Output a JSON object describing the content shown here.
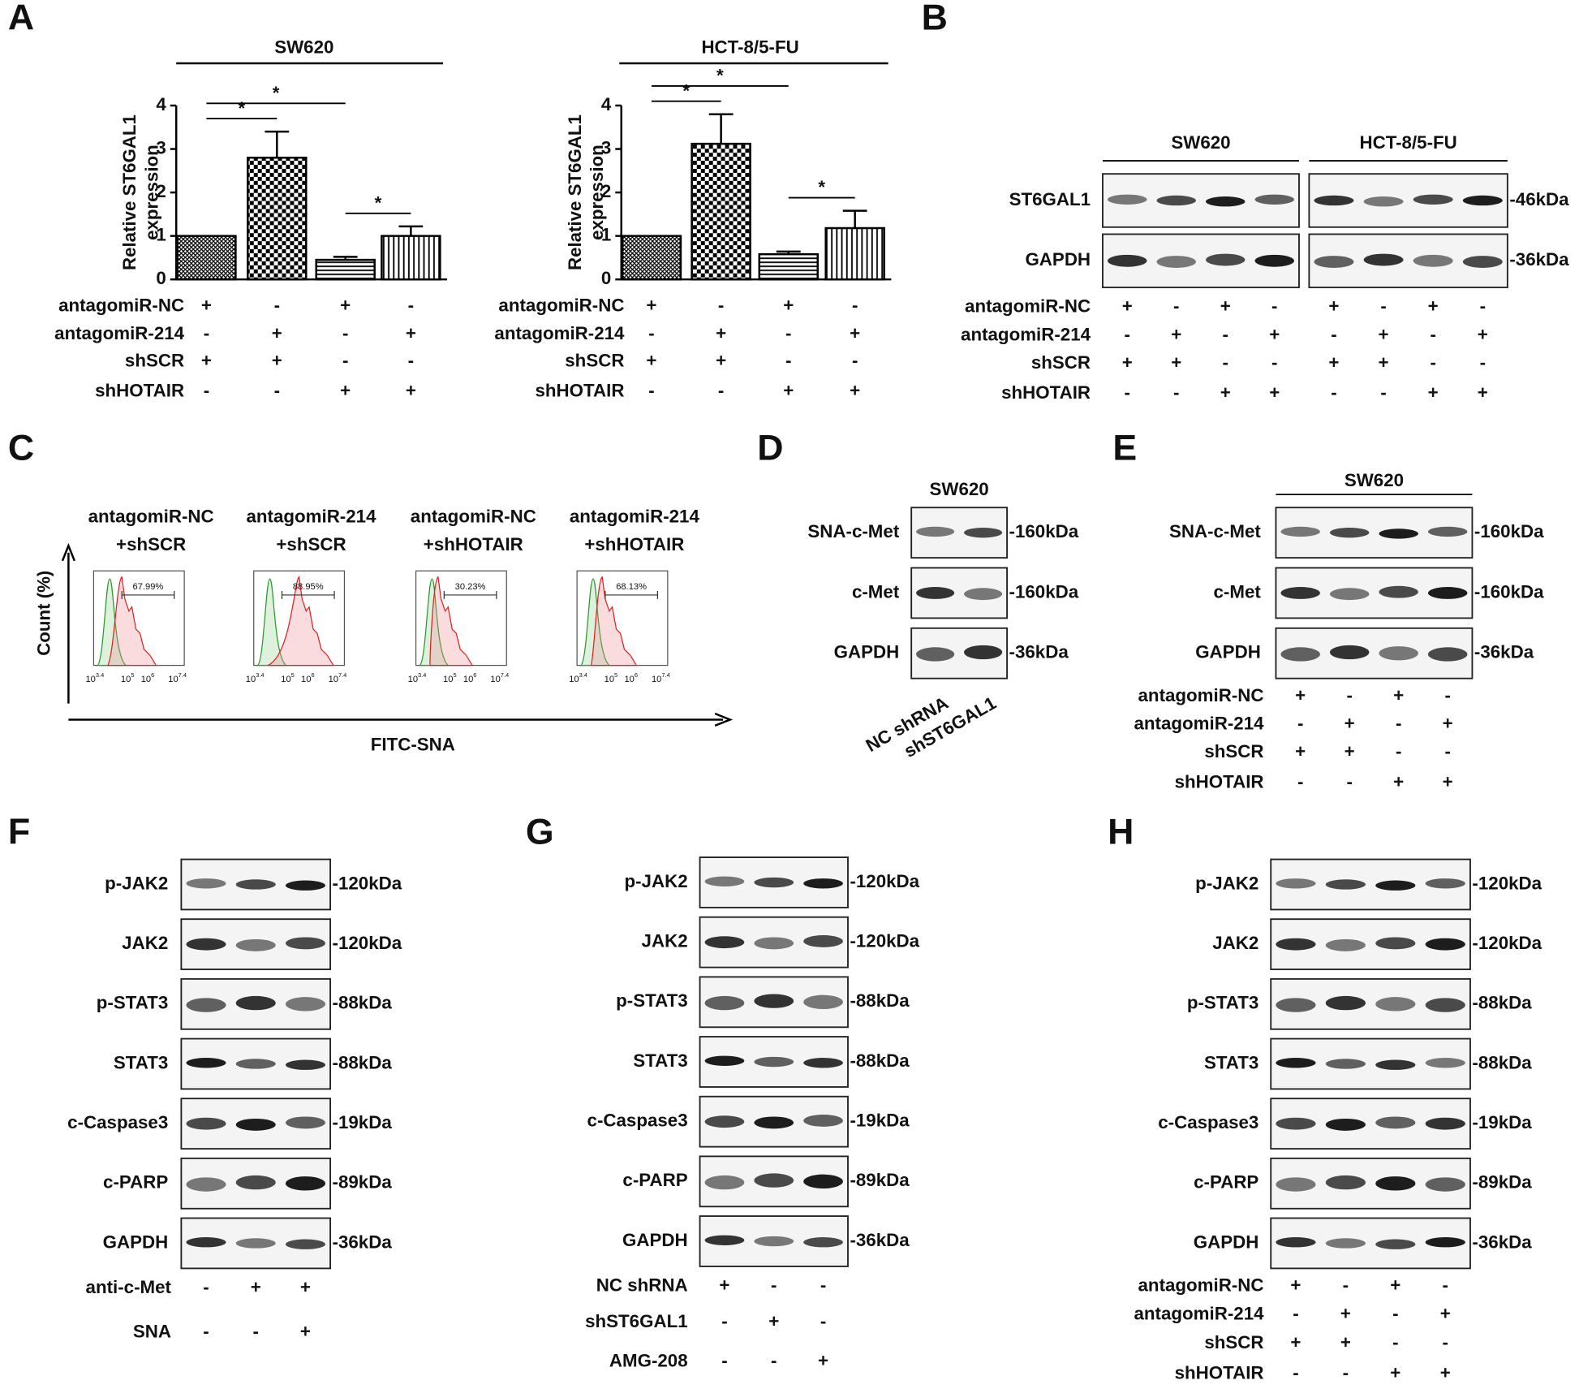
{
  "panel_letters": [
    "A",
    "B",
    "C",
    "D",
    "E",
    "F",
    "G",
    "H"
  ],
  "chart_data": [
    {
      "type": "bar",
      "title": "SW620",
      "y_label": [
        "Relative ST6GAL1",
        "expression"
      ],
      "categories": [
        null,
        null,
        null,
        null
      ],
      "values": [
        1,
        2.8,
        0.45,
        1.0
      ],
      "errors": [
        0,
        0.6,
        0.07,
        0.22
      ],
      "color": "#000000",
      "ylim": [
        0,
        4
      ],
      "yticks": [
        0,
        1,
        2,
        3,
        4
      ],
      "significance": [
        {
          "pair": [
            0,
            1
          ],
          "label": "*"
        },
        {
          "pair": [
            0,
            2
          ],
          "label": "*"
        },
        {
          "pair": [
            2,
            3
          ],
          "label": "*"
        }
      ],
      "conditions": [
        {
          "label": "antagomiR-NC",
          "signs": [
            "+",
            "-",
            "+",
            "-"
          ]
        },
        {
          "label": "antagomiR-214",
          "signs": [
            "-",
            "+",
            "-",
            "+"
          ]
        },
        {
          "label": "shSCR",
          "signs": [
            "+",
            "+",
            "-",
            "-"
          ]
        },
        {
          "label": "shHOTAIR",
          "signs": [
            "-",
            "-",
            "+",
            "+"
          ]
        }
      ]
    },
    {
      "type": "bar",
      "title": "HCT-8/5-FU",
      "y_label": [
        "Relative ST6GAL1",
        "expression"
      ],
      "categories": [
        null,
        null,
        null,
        null
      ],
      "values": [
        1,
        3.12,
        0.58,
        1.18
      ],
      "errors": [
        0,
        0.68,
        0.06,
        0.4
      ],
      "color": "#000000",
      "ylim": [
        0,
        4
      ],
      "yticks": [
        0,
        1,
        2,
        3,
        4
      ],
      "significance": [
        {
          "pair": [
            0,
            1
          ],
          "label": "*"
        },
        {
          "pair": [
            0,
            2
          ],
          "label": "*"
        },
        {
          "pair": [
            2,
            3
          ],
          "label": "*"
        }
      ],
      "conditions": [
        {
          "label": "antagomiR-NC",
          "signs": [
            "+",
            "-",
            "+",
            "-"
          ]
        },
        {
          "label": "antagomiR-214",
          "signs": [
            "-",
            "+",
            "-",
            "+"
          ]
        },
        {
          "label": "shSCR",
          "signs": [
            "+",
            "+",
            "-",
            "-"
          ]
        },
        {
          "label": "shHOTAIR",
          "signs": [
            "-",
            "-",
            "+",
            "+"
          ]
        }
      ]
    }
  ],
  "flow": {
    "titles": [
      [
        "antagomiR-NC",
        "+shSCR"
      ],
      [
        "antagomiR-214",
        "+shSCR"
      ],
      [
        "antagomiR-NC",
        "+shHOTAIR"
      ],
      [
        "antagomiR-214",
        "+shHOTAIR"
      ]
    ],
    "gates": [
      "67.99%",
      "88.95%",
      "30.23%",
      "68.13%"
    ],
    "y_label": "Count (%)",
    "x_label": "FITC-SNA",
    "tick_base": "10",
    "tick_exponents": [
      "3.4",
      "5",
      "6",
      "7.4"
    ]
  },
  "blots": {
    "B": {
      "groups": [
        "SW620",
        "HCT-8/5-FU"
      ],
      "rows": [
        {
          "label": "ST6GAL1",
          "size": "-46kDa"
        },
        {
          "label": "GAPDH",
          "size": "-36kDa"
        }
      ],
      "conditions": [
        {
          "label": "antagomiR-NC",
          "signs": [
            "+",
            "-",
            "+",
            "-",
            "+",
            "-",
            "+",
            "-"
          ]
        },
        {
          "label": "antagomiR-214",
          "signs": [
            "-",
            "+",
            "-",
            "+",
            "-",
            "+",
            "-",
            "+"
          ]
        },
        {
          "label": "shSCR",
          "signs": [
            "+",
            "+",
            "-",
            "-",
            "+",
            "+",
            "-",
            "-"
          ]
        },
        {
          "label": "shHOTAIR",
          "signs": [
            "-",
            "-",
            "+",
            "+",
            "-",
            "-",
            "+",
            "+"
          ]
        }
      ]
    },
    "D": {
      "groups": [
        "SW620"
      ],
      "rows": [
        {
          "label": "SNA-c-Met",
          "size": "-160kDa"
        },
        {
          "label": "c-Met",
          "size": "-160kDa"
        },
        {
          "label": "GAPDH",
          "size": "-36kDa"
        }
      ],
      "lanes": [
        "NC shRNA",
        "shST6GAL1"
      ]
    },
    "E": {
      "groups": [
        "SW620"
      ],
      "rows": [
        {
          "label": "SNA-c-Met",
          "size": "-160kDa"
        },
        {
          "label": "c-Met",
          "size": "-160kDa"
        },
        {
          "label": "GAPDH",
          "size": "-36kDa"
        }
      ],
      "conditions": [
        {
          "label": "antagomiR-NC",
          "signs": [
            "+",
            "-",
            "+",
            "-"
          ]
        },
        {
          "label": "antagomiR-214",
          "signs": [
            "-",
            "+",
            "-",
            "+"
          ]
        },
        {
          "label": "shSCR",
          "signs": [
            "+",
            "+",
            "-",
            "-"
          ]
        },
        {
          "label": "shHOTAIR",
          "signs": [
            "-",
            "-",
            "+",
            "+"
          ]
        }
      ]
    },
    "F": {
      "rows": [
        {
          "label": "p-JAK2",
          "size": "-120kDa"
        },
        {
          "label": "JAK2",
          "size": "-120kDa"
        },
        {
          "label": "p-STAT3",
          "size": "-88kDa"
        },
        {
          "label": "STAT3",
          "size": "-88kDa"
        },
        {
          "label": "c-Caspase3",
          "size": "-19kDa"
        },
        {
          "label": "c-PARP",
          "size": "-89kDa"
        },
        {
          "label": "GAPDH",
          "size": "-36kDa"
        }
      ],
      "conditions": [
        {
          "label": "anti-c-Met",
          "signs": [
            "-",
            "+",
            "+"
          ]
        },
        {
          "label": "SNA",
          "signs": [
            "-",
            "-",
            "+"
          ]
        }
      ]
    },
    "G": {
      "rows": [
        {
          "label": "p-JAK2",
          "size": "-120kDa"
        },
        {
          "label": "JAK2",
          "size": "-120kDa"
        },
        {
          "label": "p-STAT3",
          "size": "-88kDa"
        },
        {
          "label": "STAT3",
          "size": "-88kDa"
        },
        {
          "label": "c-Caspase3",
          "size": "-19kDa"
        },
        {
          "label": "c-PARP",
          "size": "-89kDa"
        },
        {
          "label": "GAPDH",
          "size": "-36kDa"
        }
      ],
      "conditions": [
        {
          "label": "NC shRNA",
          "signs": [
            "+",
            "-",
            "-"
          ]
        },
        {
          "label": "shST6GAL1",
          "signs": [
            "-",
            "+",
            "-"
          ]
        },
        {
          "label": "AMG-208",
          "signs": [
            "-",
            "-",
            "+"
          ]
        }
      ]
    },
    "H": {
      "rows": [
        {
          "label": "p-JAK2",
          "size": "-120kDa"
        },
        {
          "label": "JAK2",
          "size": "-120kDa"
        },
        {
          "label": "p-STAT3",
          "size": "-88kDa"
        },
        {
          "label": "STAT3",
          "size": "-88kDa"
        },
        {
          "label": "c-Caspase3",
          "size": "-19kDa"
        },
        {
          "label": "c-PARP",
          "size": "-89kDa"
        },
        {
          "label": "GAPDH",
          "size": "-36kDa"
        }
      ],
      "conditions": [
        {
          "label": "antagomiR-NC",
          "signs": [
            "+",
            "-",
            "+",
            "-"
          ]
        },
        {
          "label": "antagomiR-214",
          "signs": [
            "-",
            "+",
            "-",
            "+"
          ]
        },
        {
          "label": "shSCR",
          "signs": [
            "+",
            "+",
            "-",
            "-"
          ]
        },
        {
          "label": "shHOTAIR",
          "signs": [
            "-",
            "-",
            "+",
            "+"
          ]
        }
      ]
    }
  }
}
